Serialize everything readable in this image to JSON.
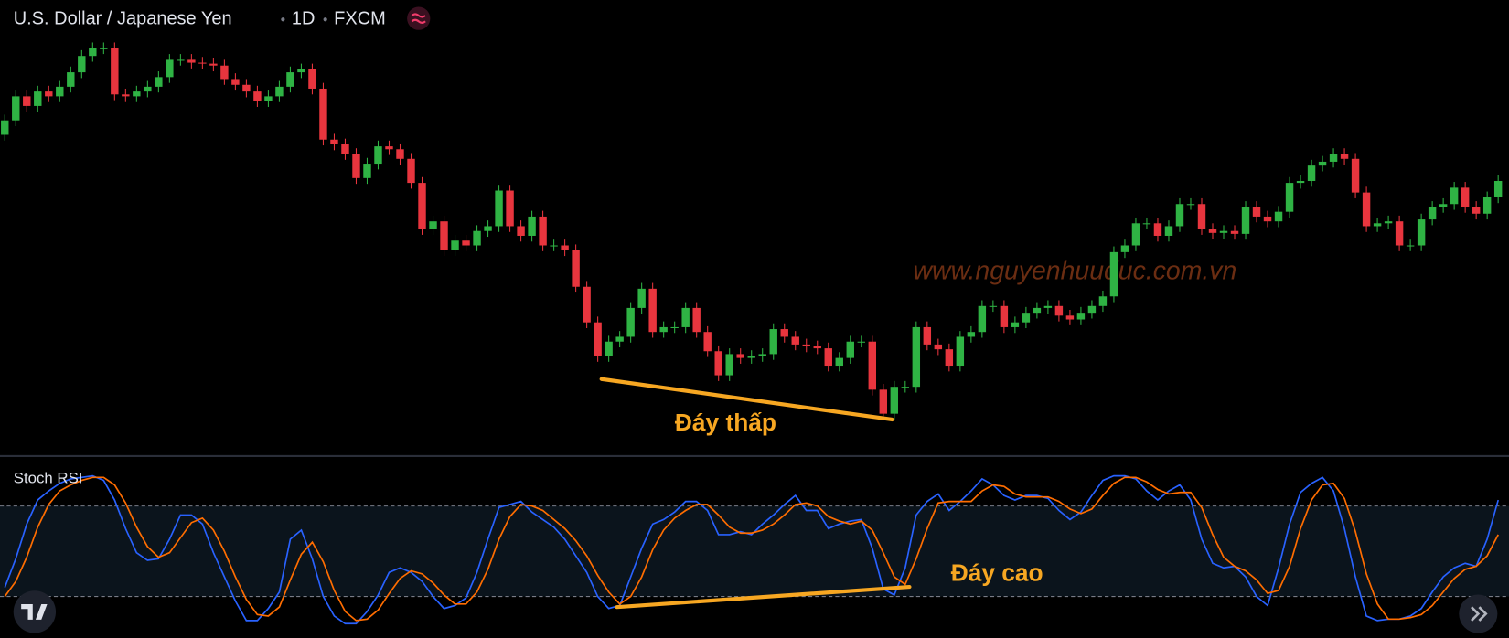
{
  "chart_data": [
    {
      "type": "candlestick",
      "title": "U.S. Dollar / Japanese Yen",
      "interval": "1D",
      "source": "FXCM",
      "watermark": "www.nguyenhuuduc.com.vn",
      "annotations": [
        {
          "text": "Đáy thấp"
        }
      ],
      "up_color": "#2fb344",
      "down_color": "#e8353e",
      "ylim": [
        0,
        470
      ],
      "open": [
        330,
        345,
        370,
        360,
        375,
        370,
        380,
        395,
        412,
        420,
        420,
        372,
        370,
        375,
        380,
        390,
        408,
        408,
        405,
        404,
        402,
        388,
        382,
        375,
        365,
        370,
        380,
        395,
        398,
        378,
        325,
        320,
        310,
        285,
        300,
        318,
        315,
        305,
        280,
        232,
        240,
        210,
        220,
        215,
        230,
        235,
        272,
        235,
        225,
        245,
        215,
        215,
        210,
        172,
        135,
        100,
        115,
        120,
        150,
        170,
        125,
        130,
        130,
        150,
        125,
        105,
        80,
        102,
        98,
        100,
        102,
        128,
        120,
        112,
        110,
        108,
        90,
        98,
        115,
        115,
        65,
        40,
        68,
        68,
        130,
        112,
        107,
        90,
        120,
        125,
        152,
        152,
        130,
        135,
        145,
        150,
        152,
        142,
        138,
        145,
        152,
        162,
        208,
        215,
        238,
        238,
        225,
        235,
        258,
        258,
        232,
        228,
        230,
        227,
        255,
        245,
        240,
        250,
        280,
        282,
        298,
        302,
        310,
        305,
        270,
        235,
        238,
        240,
        215,
        215,
        242,
        255,
        258,
        275,
        255,
        248,
        265
      ],
      "high": [
        351,
        376,
        376,
        381,
        381,
        386,
        401,
        418,
        426,
        426,
        426,
        378,
        381,
        386,
        396,
        414,
        414,
        414,
        411,
        410,
        408,
        394,
        388,
        381,
        376,
        386,
        401,
        404,
        404,
        384,
        331,
        326,
        316,
        306,
        324,
        324,
        321,
        311,
        286,
        246,
        246,
        226,
        226,
        236,
        241,
        278,
        278,
        241,
        251,
        251,
        221,
        221,
        216,
        178,
        141,
        121,
        126,
        156,
        176,
        176,
        136,
        136,
        156,
        156,
        131,
        111,
        108,
        108,
        106,
        108,
        134,
        134,
        126,
        118,
        116,
        114,
        104,
        121,
        121,
        121,
        71,
        74,
        74,
        136,
        136,
        118,
        113,
        126,
        131,
        158,
        158,
        158,
        141,
        151,
        156,
        158,
        158,
        148,
        151,
        158,
        168,
        214,
        221,
        244,
        244,
        244,
        241,
        264,
        264,
        264,
        238,
        236,
        236,
        261,
        261,
        251,
        256,
        286,
        288,
        304,
        308,
        316,
        316,
        311,
        276,
        244,
        246,
        246,
        221,
        248,
        261,
        264,
        281,
        281,
        261,
        271,
        288
      ],
      "low": [
        324,
        339,
        354,
        354,
        364,
        364,
        374,
        389,
        406,
        414,
        366,
        364,
        364,
        369,
        374,
        384,
        402,
        399,
        398,
        396,
        382,
        376,
        369,
        359,
        359,
        364,
        374,
        389,
        372,
        319,
        314,
        304,
        279,
        279,
        294,
        309,
        299,
        274,
        226,
        226,
        204,
        204,
        209,
        209,
        224,
        229,
        229,
        219,
        219,
        209,
        209,
        204,
        166,
        129,
        94,
        94,
        109,
        114,
        144,
        119,
        119,
        124,
        124,
        119,
        99,
        74,
        74,
        92,
        92,
        94,
        96,
        114,
        106,
        104,
        102,
        84,
        84,
        92,
        109,
        59,
        34,
        34,
        62,
        62,
        106,
        101,
        84,
        84,
        114,
        119,
        146,
        124,
        124,
        129,
        139,
        144,
        136,
        132,
        132,
        139,
        146,
        156,
        202,
        209,
        232,
        219,
        219,
        229,
        252,
        226,
        222,
        222,
        221,
        221,
        239,
        234,
        234,
        244,
        274,
        276,
        292,
        296,
        299,
        264,
        229,
        229,
        232,
        209,
        209,
        209,
        236,
        249,
        252,
        249,
        242,
        242,
        259
      ],
      "close": [
        345,
        370,
        360,
        375,
        370,
        380,
        395,
        412,
        420,
        420,
        372,
        370,
        375,
        380,
        390,
        408,
        408,
        405,
        404,
        402,
        388,
        382,
        375,
        365,
        370,
        380,
        395,
        398,
        378,
        325,
        320,
        310,
        285,
        300,
        318,
        315,
        305,
        280,
        232,
        240,
        210,
        220,
        215,
        230,
        235,
        272,
        235,
        225,
        245,
        215,
        215,
        210,
        172,
        135,
        100,
        115,
        120,
        150,
        170,
        125,
        130,
        130,
        150,
        125,
        105,
        80,
        102,
        98,
        100,
        102,
        128,
        120,
        112,
        110,
        108,
        90,
        98,
        115,
        115,
        65,
        40,
        68,
        68,
        130,
        112,
        107,
        90,
        120,
        125,
        152,
        152,
        130,
        135,
        145,
        150,
        152,
        142,
        138,
        145,
        152,
        162,
        208,
        215,
        238,
        238,
        225,
        235,
        258,
        258,
        232,
        228,
        230,
        227,
        255,
        245,
        240,
        250,
        280,
        282,
        298,
        302,
        310,
        305,
        270,
        235,
        238,
        240,
        215,
        215,
        242,
        255,
        258,
        275,
        255,
        248,
        265,
        282
      ]
    },
    {
      "type": "line",
      "title": "Stoch RSI",
      "annotations": [
        {
          "text": "Đáy cao"
        }
      ],
      "ylim": [
        0,
        100
      ],
      "hlines": [
        80,
        20
      ],
      "series": [
        {
          "color": "#2962ff",
          "values": [
            26,
            45,
            68,
            84,
            90,
            95,
            98,
            99,
            100,
            97,
            84,
            65,
            49,
            44,
            45,
            58,
            74,
            74,
            68,
            49,
            33,
            17,
            4,
            4,
            12,
            23,
            58,
            64,
            45,
            20,
            7,
            2,
            2,
            10,
            21,
            36,
            39,
            36,
            30,
            20,
            12,
            14,
            19,
            36,
            58,
            79,
            81,
            83,
            76,
            71,
            66,
            58,
            47,
            36,
            20,
            12,
            14,
            33,
            52,
            68,
            71,
            76,
            83,
            83,
            77,
            61,
            61,
            63,
            61,
            68,
            74,
            81,
            87,
            77,
            77,
            65,
            68,
            70,
            71,
            52,
            25,
            21,
            39,
            74,
            83,
            88,
            77,
            83,
            90,
            98,
            94,
            87,
            84,
            87,
            87,
            85,
            77,
            71,
            76,
            87,
            97,
            100,
            100,
            98,
            90,
            84,
            90,
            94,
            84,
            58,
            42,
            39,
            40,
            33,
            20,
            14,
            39,
            68,
            89,
            95,
            99,
            90,
            65,
            33,
            7,
            4,
            5,
            5,
            7,
            12,
            23,
            33,
            39,
            42,
            40,
            58,
            84
          ]
        },
        {
          "color": "#ff6d00",
          "values": [
            20,
            30,
            46,
            66,
            81,
            90,
            94,
            97,
            99,
            99,
            94,
            82,
            66,
            53,
            46,
            49,
            59,
            69,
            72,
            64,
            50,
            33,
            18,
            8,
            7,
            13,
            31,
            48,
            56,
            43,
            24,
            10,
            4,
            5,
            11,
            22,
            32,
            37,
            35,
            29,
            21,
            15,
            15,
            23,
            38,
            58,
            73,
            81,
            80,
            77,
            71,
            65,
            57,
            47,
            34,
            23,
            15,
            20,
            33,
            51,
            64,
            72,
            77,
            81,
            81,
            74,
            66,
            62,
            62,
            64,
            68,
            74,
            81,
            82,
            80,
            73,
            70,
            68,
            70,
            64,
            49,
            33,
            28,
            45,
            65,
            82,
            83,
            83,
            83,
            90,
            94,
            93,
            88,
            86,
            86,
            86,
            83,
            78,
            75,
            78,
            87,
            95,
            99,
            99,
            96,
            91,
            88,
            89,
            89,
            79,
            61,
            46,
            40,
            37,
            31,
            22,
            24,
            40,
            65,
            84,
            94,
            95,
            85,
            63,
            35,
            15,
            5,
            5,
            6,
            8,
            14,
            23,
            32,
            38,
            40,
            47,
            61
          ]
        }
      ]
    }
  ]
}
